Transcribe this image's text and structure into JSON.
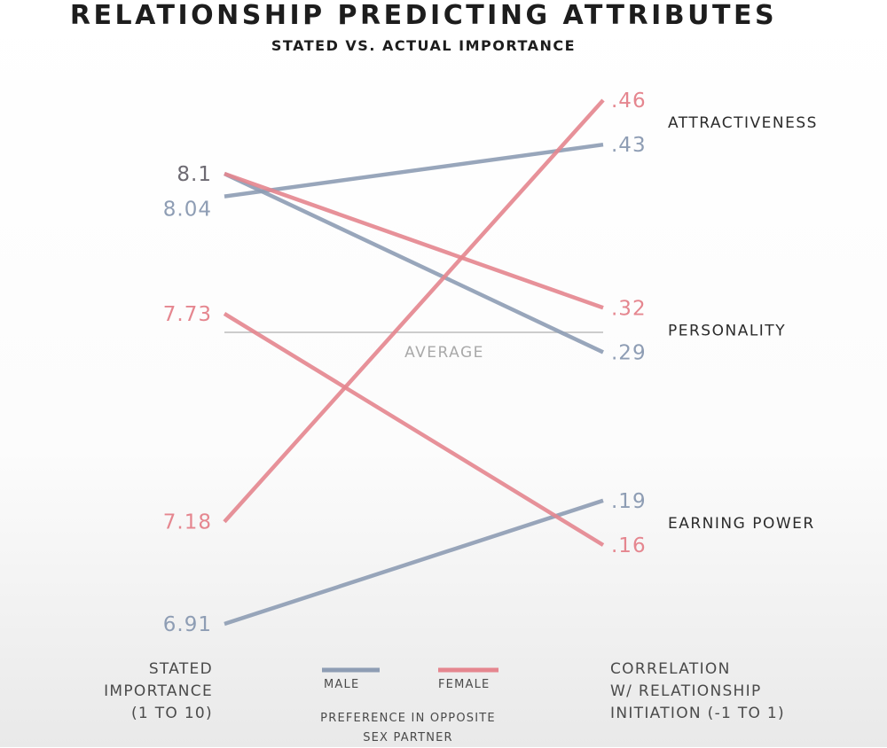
{
  "header": {
    "title": "RELATIONSHIP PREDICTING ATTRIBUTES",
    "subtitle": "STATED VS. ACTUAL IMPORTANCE"
  },
  "chart_data": {
    "type": "line",
    "title": "RELATIONSHIP PREDICTING ATTRIBUTES",
    "subtitle": "STATED VS. ACTUAL IMPORTANCE",
    "left_axis_label": [
      "STATED",
      "IMPORTANCE",
      "(1 TO 10)"
    ],
    "right_axis_label": [
      "CORRELATION",
      "W/ RELATIONSHIP",
      "INITIATION (-1 TO 1)"
    ],
    "categories": [
      "ATTRACTIVENESS",
      "PERSONALITY",
      "EARNING POWER"
    ],
    "reference_label": "AVERAGE",
    "legend_title": [
      "PREFERENCE IN OPPOSITE",
      "SEX PARTNER"
    ],
    "colors": {
      "male": "#8e9db4",
      "female": "#e5868f",
      "text": "#4a4a4a",
      "reference": "#bcbcbc"
    },
    "series": [
      {
        "name": "MALE",
        "lines": [
          {
            "category": "ATTRACTIVENESS",
            "stated": 8.04,
            "stated_label": "8.04",
            "correlation": 0.43,
            "correlation_label": ".43"
          },
          {
            "category": "PERSONALITY",
            "stated": 8.1,
            "stated_label": "8.1",
            "correlation": 0.29,
            "correlation_label": ".29"
          },
          {
            "category": "EARNING POWER",
            "stated": 6.91,
            "stated_label": "6.91",
            "correlation": 0.19,
            "correlation_label": ".19"
          }
        ]
      },
      {
        "name": "FEMALE",
        "lines": [
          {
            "category": "ATTRACTIVENESS",
            "stated": 7.18,
            "stated_label": "7.18",
            "correlation": 0.46,
            "correlation_label": ".46"
          },
          {
            "category": "PERSONALITY",
            "stated": 8.1,
            "stated_label": "8.1",
            "correlation": 0.32,
            "correlation_label": ".32"
          },
          {
            "category": "EARNING POWER",
            "stated": 7.73,
            "stated_label": "7.73",
            "correlation": 0.16,
            "correlation_label": ".16"
          }
        ]
      }
    ]
  }
}
